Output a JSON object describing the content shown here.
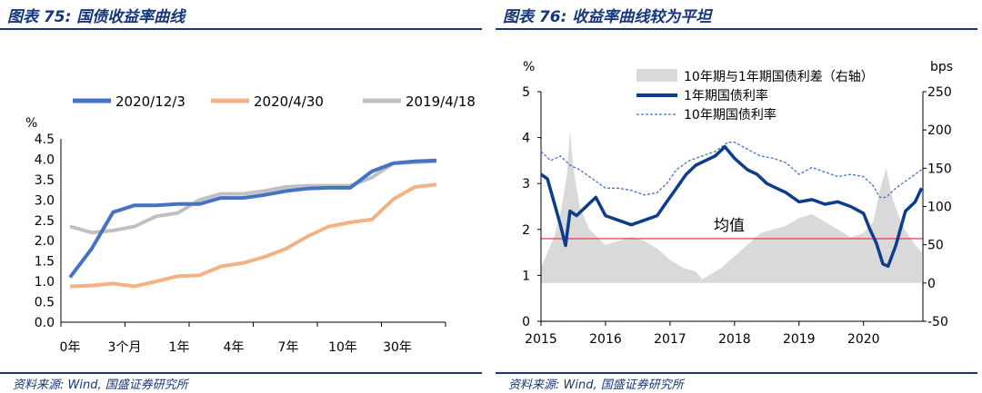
{
  "left": {
    "title": "图表 75:  国债收益率曲线",
    "source": "资料来源:  Wind,  国盛证券研究所",
    "chart_data": {
      "type": "line",
      "title": "",
      "ylabel": "%",
      "ylim": [
        0,
        4.5
      ],
      "yticks": [
        "4.5",
        "4.0",
        "3.5",
        "3.0",
        "2.5",
        "2.0",
        "1.5",
        "1.0",
        "0.5",
        "0.0"
      ],
      "xtick_labels": [
        "0年",
        "3个月",
        "1年",
        "4年",
        "7年",
        "10年",
        "30年"
      ],
      "x": [
        0,
        1,
        2,
        3,
        4,
        5,
        6,
        7,
        8,
        9,
        10,
        11,
        12,
        13,
        14,
        15,
        16,
        17
      ],
      "legend_position": "top",
      "series": [
        {
          "name": "2020/12/3",
          "color": "#4472c4",
          "values": [
            1.1,
            1.8,
            2.7,
            2.87,
            2.87,
            2.9,
            2.9,
            3.05,
            3.05,
            3.12,
            3.22,
            3.28,
            3.3,
            3.3,
            3.7,
            3.9,
            3.95,
            3.97
          ]
        },
        {
          "name": "2020/4/30",
          "color": "#f4b183",
          "values": [
            0.88,
            0.9,
            0.95,
            0.88,
            1.0,
            1.13,
            1.15,
            1.37,
            1.45,
            1.6,
            1.8,
            2.1,
            2.35,
            2.45,
            2.52,
            3.02,
            3.32,
            3.38
          ]
        },
        {
          "name": "2019/4/18",
          "color": "#c0c0c0",
          "values": [
            2.35,
            2.2,
            2.25,
            2.35,
            2.6,
            2.68,
            3.0,
            3.15,
            3.15,
            3.22,
            3.32,
            3.35,
            3.35,
            3.35,
            3.55,
            3.9,
            3.92,
            3.95
          ]
        }
      ]
    }
  },
  "right": {
    "title": "图表 76:  收益率曲线较为平坦",
    "source": "资料来源:  Wind,  国盛证券研究所",
    "chart_data": {
      "type": "line",
      "title": "",
      "ylabel_left": "%",
      "ylabel_right": "bps",
      "ylim_left": [
        0,
        5
      ],
      "ylim_right": [
        -50,
        250
      ],
      "yticks_left": [
        "5",
        "4",
        "3",
        "2",
        "1",
        "0"
      ],
      "yticks_right": [
        "250",
        "200",
        "150",
        "100",
        "50",
        "0",
        "-50"
      ],
      "xtick_labels": [
        "2015",
        "2016",
        "2017",
        "2018",
        "2019",
        "2020"
      ],
      "annotation": "均值",
      "mean_line_value_pct": 1.8,
      "mean_line_color": "#e03030",
      "legend_position": "top-center",
      "series": [
        {
          "name": "10年期与1年期国债利差（右轴）",
          "type": "area",
          "axis": "right",
          "color": "#d9d9d9",
          "x": [
            2015.0,
            2015.1,
            2015.2,
            2015.3,
            2015.4,
            2015.45,
            2015.5,
            2015.6,
            2015.75,
            2016.0,
            2016.2,
            2016.4,
            2016.6,
            2016.8,
            2017.0,
            2017.2,
            2017.4,
            2017.5,
            2017.6,
            2017.8,
            2018.0,
            2018.2,
            2018.4,
            2018.6,
            2018.8,
            2019.0,
            2019.2,
            2019.4,
            2019.6,
            2019.8,
            2020.0,
            2020.15,
            2020.25,
            2020.35,
            2020.45,
            2020.6,
            2020.8,
            2020.9
          ],
          "values": [
            20,
            40,
            60,
            90,
            140,
            200,
            150,
            100,
            70,
            50,
            55,
            60,
            55,
            45,
            30,
            20,
            15,
            5,
            10,
            20,
            35,
            50,
            65,
            70,
            75,
            85,
            90,
            80,
            70,
            60,
            65,
            80,
            120,
            150,
            110,
            75,
            50,
            40
          ]
        },
        {
          "name": "1年期国债利率",
          "type": "line",
          "axis": "left",
          "color": "#0c3c8c",
          "x": [
            2015.0,
            2015.1,
            2015.2,
            2015.3,
            2015.38,
            2015.45,
            2015.55,
            2015.7,
            2015.85,
            2016.0,
            2016.2,
            2016.4,
            2016.6,
            2016.8,
            2016.95,
            2017.1,
            2017.25,
            2017.4,
            2017.55,
            2017.7,
            2017.85,
            2018.0,
            2018.2,
            2018.35,
            2018.5,
            2018.65,
            2018.8,
            2019.0,
            2019.2,
            2019.4,
            2019.6,
            2019.8,
            2020.0,
            2020.1,
            2020.2,
            2020.3,
            2020.38,
            2020.5,
            2020.65,
            2020.8,
            2020.9
          ],
          "values": [
            3.2,
            3.1,
            2.6,
            2.1,
            1.65,
            2.4,
            2.3,
            2.5,
            2.7,
            2.3,
            2.2,
            2.1,
            2.2,
            2.3,
            2.6,
            2.9,
            3.2,
            3.4,
            3.5,
            3.6,
            3.8,
            3.55,
            3.3,
            3.2,
            3.0,
            2.9,
            2.8,
            2.6,
            2.65,
            2.55,
            2.6,
            2.5,
            2.35,
            2.0,
            1.7,
            1.25,
            1.2,
            1.65,
            2.4,
            2.6,
            2.9
          ]
        },
        {
          "name": "10年期国债利率",
          "type": "line",
          "axis": "left",
          "color": "#4472c4",
          "dash": true,
          "x": [
            2015.0,
            2015.15,
            2015.3,
            2015.45,
            2015.6,
            2015.8,
            2016.0,
            2016.2,
            2016.4,
            2016.6,
            2016.8,
            2016.95,
            2017.1,
            2017.3,
            2017.5,
            2017.7,
            2017.9,
            2018.0,
            2018.2,
            2018.4,
            2018.6,
            2018.8,
            2019.0,
            2019.2,
            2019.4,
            2019.6,
            2019.8,
            2020.0,
            2020.15,
            2020.25,
            2020.35,
            2020.5,
            2020.7,
            2020.9
          ],
          "values": [
            3.7,
            3.5,
            3.6,
            3.4,
            3.3,
            3.1,
            2.9,
            2.9,
            2.85,
            2.75,
            2.8,
            3.0,
            3.3,
            3.5,
            3.6,
            3.7,
            3.9,
            3.9,
            3.75,
            3.6,
            3.55,
            3.45,
            3.2,
            3.35,
            3.25,
            3.15,
            3.2,
            3.15,
            2.95,
            2.7,
            2.7,
            2.9,
            3.1,
            3.3
          ]
        }
      ]
    }
  }
}
